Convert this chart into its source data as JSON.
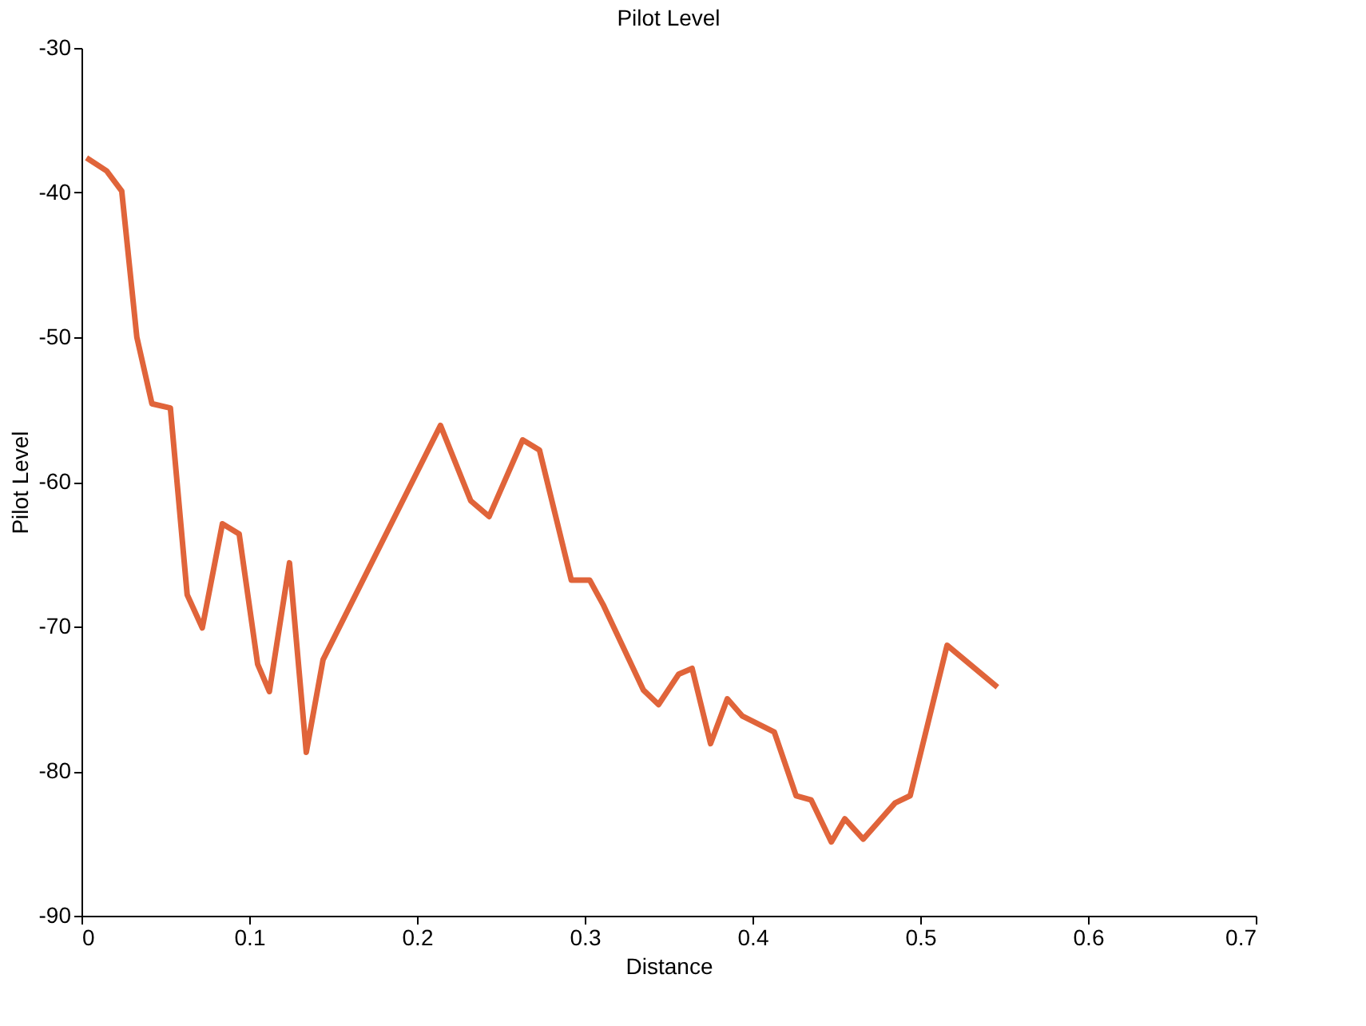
{
  "chart_data": {
    "type": "line",
    "title": "Pilot Level",
    "xlabel": "Distance",
    "ylabel": "Pilot Level",
    "x": [
      0.003,
      0.015,
      0.024,
      0.033,
      0.042,
      0.053,
      0.063,
      0.072,
      0.084,
      0.094,
      0.105,
      0.112,
      0.124,
      0.134,
      0.144,
      0.214,
      0.232,
      0.243,
      0.263,
      0.273,
      0.292,
      0.303,
      0.311,
      0.335,
      0.344,
      0.356,
      0.364,
      0.375,
      0.385,
      0.394,
      0.413,
      0.426,
      0.435,
      0.447,
      0.455,
      0.466,
      0.485,
      0.494,
      0.516,
      0.546
    ],
    "series": [
      {
        "color": "#e0643a",
        "values": [
          -37.6,
          -38.5,
          -39.9,
          -50,
          -54.6,
          -54.9,
          -67.8,
          -70.1,
          -62.9,
          -63.6,
          -72.6,
          -74.5,
          -65.6,
          -78.7,
          -72.3,
          -56.1,
          -61.3,
          -62.4,
          -57.1,
          -57.8,
          -66.8,
          -66.8,
          -68.5,
          -74.4,
          -75.4,
          -73.3,
          -72.9,
          -78.1,
          -75.0,
          -76.2,
          -77.3,
          -81.7,
          -82.0,
          -84.9,
          -83.3,
          -84.7,
          -82.2,
          -81.7,
          -71.3,
          -74.2
        ]
      }
    ],
    "xlim": [
      0,
      0.7
    ],
    "xticks": [
      0,
      0.1,
      0.2,
      0.3,
      0.4,
      0.5,
      0.6,
      0.7
    ],
    "ylim": [
      -90,
      -30
    ],
    "yticks": [
      -90,
      -80,
      -70,
      -60,
      -50,
      -40,
      -30
    ],
    "grid": false,
    "marker": "none",
    "line_style": "solid"
  }
}
